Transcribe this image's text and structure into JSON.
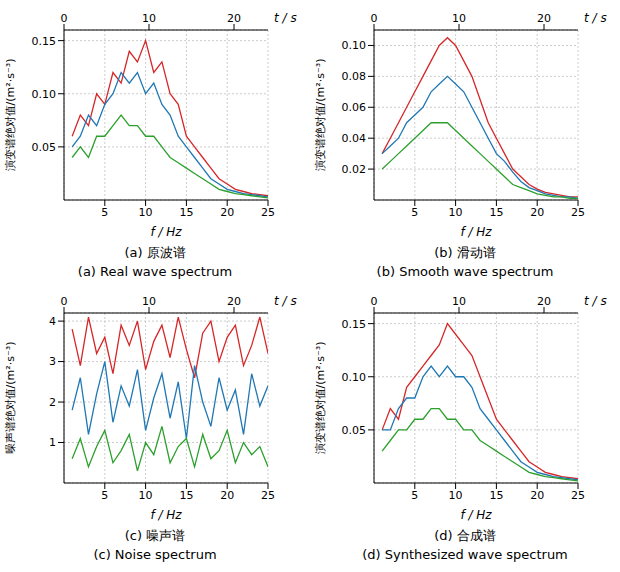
{
  "chart_data": [
    {
      "type": "line",
      "title": "(a) 原波谱",
      "subtitle": "(a) Real wave spectrum",
      "xlabel": "f / Hz",
      "ylabel": "演变谱绝对值/(m²·s⁻³)",
      "x2label": "t / s",
      "x": [
        1,
        2,
        3,
        4,
        5,
        6,
        7,
        8,
        9,
        10,
        11,
        12,
        13,
        14,
        15,
        16,
        17,
        18,
        19,
        20,
        21,
        22,
        23,
        24,
        25
      ],
      "xlim": [
        0,
        25
      ],
      "xticks": [
        5,
        10,
        15,
        20,
        25
      ],
      "x2lim": [
        0,
        25
      ],
      "x2ticks": [
        0,
        10,
        20
      ],
      "ylim": [
        0,
        0.16
      ],
      "yticks": [
        0.05,
        {
          "value": 0.1,
          "label": "0.10"
        },
        0.15
      ],
      "grid": true,
      "series": [
        {
          "color": "#d62728",
          "values": [
            0.06,
            0.08,
            0.07,
            0.1,
            0.09,
            0.12,
            0.11,
            0.14,
            0.13,
            0.15,
            0.12,
            0.13,
            0.1,
            0.09,
            0.06,
            0.05,
            0.04,
            0.03,
            0.02,
            0.015,
            0.01,
            0.008,
            0.006,
            0.005,
            0.004
          ]
        },
        {
          "color": "#1f77b4",
          "values": [
            0.05,
            0.06,
            0.08,
            0.07,
            0.09,
            0.1,
            0.12,
            0.11,
            0.12,
            0.1,
            0.11,
            0.09,
            0.08,
            0.06,
            0.05,
            0.04,
            0.03,
            0.02,
            0.015,
            0.01,
            0.008,
            0.006,
            0.005,
            0.004,
            0.003
          ]
        },
        {
          "color": "#2ca02c",
          "values": [
            0.04,
            0.05,
            0.04,
            0.06,
            0.06,
            0.07,
            0.08,
            0.07,
            0.07,
            0.06,
            0.06,
            0.05,
            0.04,
            0.035,
            0.03,
            0.025,
            0.02,
            0.015,
            0.01,
            0.008,
            0.006,
            0.005,
            0.004,
            0.003,
            0.002
          ]
        }
      ]
    },
    {
      "type": "line",
      "title": "(b) 滑动谱",
      "subtitle": "(b) Smooth wave spectrum",
      "xlabel": "f / Hz",
      "ylabel": "演变谱绝对值/(m²·s⁻³)",
      "x2label": "t / s",
      "x": [
        1,
        2,
        3,
        4,
        5,
        6,
        7,
        8,
        9,
        10,
        11,
        12,
        13,
        14,
        15,
        16,
        17,
        18,
        19,
        20,
        21,
        22,
        23,
        24,
        25
      ],
      "xlim": [
        0,
        25
      ],
      "xticks": [
        5,
        10,
        15,
        20,
        25
      ],
      "x2lim": [
        0,
        25
      ],
      "x2ticks": [
        0,
        10,
        20
      ],
      "ylim": [
        0,
        0.11
      ],
      "yticks": [
        0.02,
        0.04,
        0.06,
        0.08,
        {
          "value": 0.1,
          "label": "0.10"
        }
      ],
      "grid": true,
      "series": [
        {
          "color": "#d62728",
          "values": [
            0.03,
            0.04,
            0.05,
            0.06,
            0.07,
            0.08,
            0.09,
            0.1,
            0.105,
            0.1,
            0.09,
            0.08,
            0.065,
            0.05,
            0.04,
            0.03,
            0.02,
            0.015,
            0.01,
            0.007,
            0.005,
            0.004,
            0.003,
            0.002,
            0.002
          ]
        },
        {
          "color": "#1f77b4",
          "values": [
            0.03,
            0.035,
            0.04,
            0.05,
            0.055,
            0.06,
            0.07,
            0.075,
            0.08,
            0.075,
            0.07,
            0.06,
            0.05,
            0.04,
            0.03,
            0.025,
            0.018,
            0.012,
            0.008,
            0.006,
            0.004,
            0.003,
            0.002,
            0.002,
            0.001
          ]
        },
        {
          "color": "#2ca02c",
          "values": [
            0.02,
            0.025,
            0.03,
            0.035,
            0.04,
            0.045,
            0.05,
            0.05,
            0.05,
            0.045,
            0.04,
            0.035,
            0.03,
            0.025,
            0.02,
            0.015,
            0.01,
            0.008,
            0.006,
            0.004,
            0.003,
            0.002,
            0.002,
            0.001,
            0.001
          ]
        }
      ]
    },
    {
      "type": "line",
      "title": "(c) 噪声谱",
      "subtitle": "(c) Noise spectrum",
      "xlabel": "f / Hz",
      "ylabel": "噪声谱绝对值/(m²·s⁻³)",
      "x2label": "t / s",
      "x": [
        1,
        2,
        3,
        4,
        5,
        6,
        7,
        8,
        9,
        10,
        11,
        12,
        13,
        14,
        15,
        16,
        17,
        18,
        19,
        20,
        21,
        22,
        23,
        24,
        25
      ],
      "xlim": [
        0,
        25
      ],
      "xticks": [
        5,
        10,
        15,
        20,
        25
      ],
      "x2lim": [
        0,
        25
      ],
      "x2ticks": [
        0,
        10,
        20
      ],
      "ylim": [
        0,
        4.2
      ],
      "yticks": [
        1,
        2,
        3,
        4
      ],
      "grid": true,
      "series": [
        {
          "color": "#d62728",
          "values": [
            3.8,
            2.9,
            4.1,
            3.2,
            3.6,
            2.7,
            3.9,
            3.4,
            4.0,
            2.8,
            3.5,
            3.9,
            3.1,
            4.1,
            3.3,
            2.6,
            3.7,
            4.0,
            3.0,
            3.6,
            3.9,
            2.9,
            3.4,
            4.1,
            3.2
          ]
        },
        {
          "color": "#1f77b4",
          "values": [
            1.8,
            2.6,
            1.2,
            2.2,
            3.0,
            1.5,
            2.4,
            1.9,
            2.8,
            1.3,
            2.1,
            2.7,
            1.6,
            2.5,
            1.1,
            2.9,
            2.0,
            1.4,
            2.6,
            1.8,
            2.3,
            1.2,
            2.7,
            1.9,
            2.4
          ]
        },
        {
          "color": "#2ca02c",
          "values": [
            0.6,
            1.1,
            0.4,
            0.9,
            1.3,
            0.5,
            0.8,
            1.2,
            0.3,
            1.0,
            0.7,
            1.4,
            0.5,
            0.9,
            1.1,
            0.4,
            1.2,
            0.6,
            0.8,
            1.3,
            0.5,
            1.0,
            0.7,
            0.9,
            0.4
          ]
        }
      ]
    },
    {
      "type": "line",
      "title": "(d) 合成谱",
      "subtitle": "(d) Synthesized wave spectrum",
      "xlabel": "f / Hz",
      "ylabel": "演变谱绝对值/(m²·s⁻³)",
      "x2label": "t / s",
      "x": [
        1,
        2,
        3,
        4,
        5,
        6,
        7,
        8,
        9,
        10,
        11,
        12,
        13,
        14,
        15,
        16,
        17,
        18,
        19,
        20,
        21,
        22,
        23,
        24,
        25
      ],
      "xlim": [
        0,
        25
      ],
      "xticks": [
        5,
        10,
        15,
        20,
        25
      ],
      "x2lim": [
        0,
        25
      ],
      "x2ticks": [
        0,
        10,
        20
      ],
      "ylim": [
        0,
        0.16
      ],
      "yticks": [
        0.05,
        {
          "value": 0.1,
          "label": "0.10"
        },
        0.15
      ],
      "grid": true,
      "series": [
        {
          "color": "#d62728",
          "values": [
            0.05,
            0.07,
            0.06,
            0.09,
            0.1,
            0.11,
            0.12,
            0.13,
            0.15,
            0.14,
            0.13,
            0.12,
            0.1,
            0.08,
            0.06,
            0.05,
            0.04,
            0.03,
            0.02,
            0.015,
            0.01,
            0.008,
            0.006,
            0.005,
            0.004
          ]
        },
        {
          "color": "#1f77b4",
          "values": [
            0.05,
            0.05,
            0.07,
            0.08,
            0.08,
            0.1,
            0.11,
            0.1,
            0.11,
            0.1,
            0.1,
            0.09,
            0.07,
            0.06,
            0.05,
            0.04,
            0.03,
            0.02,
            0.015,
            0.01,
            0.008,
            0.006,
            0.005,
            0.004,
            0.003
          ]
        },
        {
          "color": "#2ca02c",
          "values": [
            0.03,
            0.04,
            0.05,
            0.05,
            0.06,
            0.06,
            0.07,
            0.07,
            0.06,
            0.06,
            0.05,
            0.05,
            0.04,
            0.035,
            0.03,
            0.025,
            0.02,
            0.015,
            0.01,
            0.008,
            0.006,
            0.005,
            0.004,
            0.003,
            0.002
          ]
        }
      ]
    }
  ]
}
